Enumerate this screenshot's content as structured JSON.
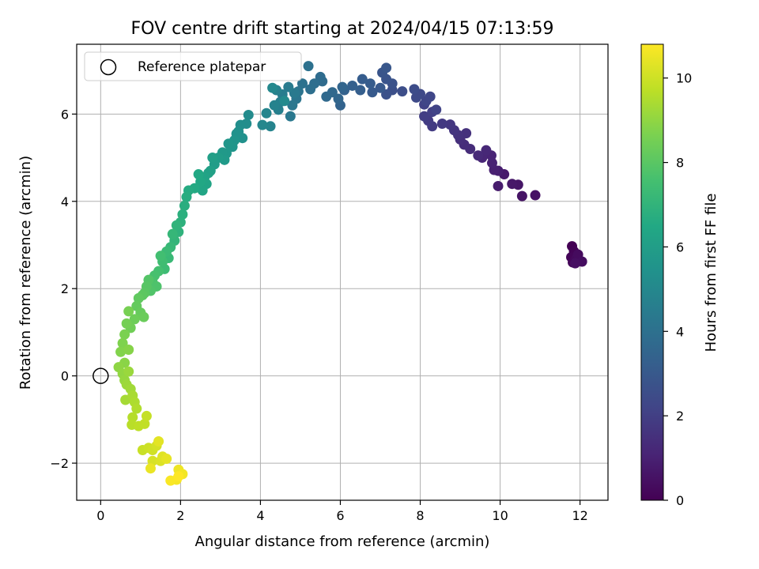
{
  "chart_data": {
    "type": "scatter",
    "title": "FOV centre drift starting at 2024/04/15 07:13:59",
    "xlabel": "Angular distance from reference (arcmin)",
    "ylabel": "Rotation from reference (arcmin)",
    "colorbar_label": "Hours from first FF file",
    "xlim": [
      -0.6,
      12.7
    ],
    "ylim": [
      -2.85,
      7.6
    ],
    "clim": [
      0,
      10.8
    ],
    "colormap": "viridis",
    "grid": true,
    "legend_position": "upper-left",
    "x_ticks": [
      0,
      2,
      4,
      6,
      8,
      10,
      12
    ],
    "y_ticks": [
      -2,
      0,
      2,
      4,
      6
    ],
    "colorbar_ticks": [
      0,
      2,
      4,
      6,
      8,
      10
    ],
    "x_tick_labels": [
      "0",
      "2",
      "4",
      "6",
      "8",
      "10",
      "12"
    ],
    "y_tick_labels": [
      "−2",
      "0",
      "2",
      "4",
      "6"
    ],
    "colorbar_tick_labels": [
      "0",
      "2",
      "4",
      "6",
      "8",
      "10"
    ],
    "reference": {
      "label": "Reference platepar",
      "x": 0.0,
      "y": 0.0
    },
    "series": [
      {
        "points": [
          [
            11.8,
            2.97
          ],
          [
            11.85,
            2.85
          ],
          [
            11.78,
            2.72
          ],
          [
            11.82,
            2.6
          ],
          [
            11.9,
            2.68
          ],
          [
            11.95,
            2.78
          ],
          [
            12.05,
            2.62
          ],
          [
            11.88,
            2.58
          ],
          [
            10.88,
            4.14
          ],
          [
            10.55,
            4.12
          ],
          [
            10.45,
            4.38
          ],
          [
            10.3,
            4.4
          ],
          [
            10.1,
            4.62
          ],
          [
            9.95,
            4.35
          ],
          [
            9.95,
            4.7
          ],
          [
            9.85,
            4.72
          ],
          [
            9.8,
            4.88
          ],
          [
            9.78,
            5.05
          ],
          [
            9.55,
            5.0
          ],
          [
            9.65,
            5.17
          ],
          [
            9.45,
            5.05
          ],
          [
            9.25,
            5.2
          ],
          [
            9.1,
            5.3
          ],
          [
            9.0,
            5.42
          ],
          [
            9.15,
            5.56
          ],
          [
            8.95,
            5.52
          ],
          [
            8.85,
            5.63
          ],
          [
            8.75,
            5.76
          ],
          [
            8.55,
            5.78
          ],
          [
            8.3,
            5.72
          ],
          [
            8.2,
            5.85
          ],
          [
            8.1,
            5.95
          ],
          [
            8.3,
            6.05
          ],
          [
            8.1,
            6.22
          ],
          [
            8.4,
            6.1
          ],
          [
            8.15,
            6.3
          ],
          [
            8.25,
            6.4
          ],
          [
            8.0,
            6.46
          ],
          [
            7.9,
            6.38
          ],
          [
            7.85,
            6.57
          ],
          [
            7.55,
            6.52
          ],
          [
            7.3,
            6.55
          ],
          [
            7.15,
            6.45
          ],
          [
            7.3,
            6.7
          ],
          [
            7.15,
            6.8
          ],
          [
            7.05,
            6.95
          ],
          [
            7.15,
            7.06
          ],
          [
            7.0,
            6.6
          ],
          [
            6.8,
            6.5
          ],
          [
            6.75,
            6.7
          ],
          [
            6.55,
            6.8
          ],
          [
            6.5,
            6.55
          ],
          [
            6.3,
            6.65
          ],
          [
            6.1,
            6.55
          ],
          [
            6.0,
            6.2
          ],
          [
            6.05,
            6.62
          ],
          [
            5.95,
            6.35
          ],
          [
            5.8,
            6.5
          ],
          [
            5.65,
            6.4
          ],
          [
            5.55,
            6.75
          ],
          [
            5.5,
            6.85
          ],
          [
            5.35,
            6.7
          ],
          [
            5.25,
            6.57
          ],
          [
            5.2,
            7.1
          ],
          [
            5.05,
            6.7
          ],
          [
            4.95,
            6.52
          ],
          [
            4.9,
            6.35
          ],
          [
            4.8,
            6.2
          ],
          [
            4.75,
            5.95
          ],
          [
            4.85,
            6.48
          ],
          [
            4.7,
            6.62
          ],
          [
            4.55,
            6.45
          ],
          [
            4.5,
            6.28
          ],
          [
            4.45,
            6.1
          ],
          [
            4.4,
            6.55
          ],
          [
            4.35,
            6.2
          ],
          [
            4.25,
            5.72
          ],
          [
            4.15,
            6.02
          ],
          [
            4.05,
            5.75
          ],
          [
            4.3,
            6.6
          ],
          [
            4.6,
            6.3
          ],
          [
            3.7,
            5.98
          ],
          [
            3.65,
            5.78
          ],
          [
            3.5,
            5.75
          ],
          [
            3.45,
            5.6
          ],
          [
            3.55,
            5.45
          ],
          [
            3.4,
            5.55
          ],
          [
            3.35,
            5.4
          ],
          [
            3.3,
            5.25
          ],
          [
            3.2,
            5.32
          ],
          [
            3.15,
            5.1
          ],
          [
            3.05,
            5.12
          ],
          [
            3.1,
            4.95
          ],
          [
            2.95,
            5.0
          ],
          [
            2.85,
            4.85
          ],
          [
            2.8,
            5.0
          ],
          [
            2.75,
            4.7
          ],
          [
            2.7,
            4.65
          ],
          [
            2.6,
            4.55
          ],
          [
            2.65,
            4.4
          ],
          [
            2.55,
            4.25
          ],
          [
            2.5,
            4.45
          ],
          [
            2.45,
            4.62
          ],
          [
            2.35,
            4.3
          ],
          [
            2.2,
            4.25
          ],
          [
            2.15,
            4.1
          ],
          [
            2.1,
            3.9
          ],
          [
            2.05,
            3.7
          ],
          [
            2.0,
            3.52
          ],
          [
            1.95,
            3.3
          ],
          [
            1.9,
            3.45
          ],
          [
            1.85,
            3.1
          ],
          [
            1.8,
            3.25
          ],
          [
            1.75,
            2.95
          ],
          [
            1.7,
            2.7
          ],
          [
            1.65,
            2.85
          ],
          [
            1.6,
            2.45
          ],
          [
            1.55,
            2.62
          ],
          [
            1.5,
            2.75
          ],
          [
            1.45,
            2.4
          ],
          [
            1.35,
            2.3
          ],
          [
            1.3,
            2.15
          ],
          [
            1.4,
            2.05
          ],
          [
            1.25,
            1.95
          ],
          [
            1.2,
            2.2
          ],
          [
            1.15,
            2.05
          ],
          [
            1.1,
            1.9
          ],
          [
            1.05,
            1.85
          ],
          [
            0.95,
            1.78
          ],
          [
            0.9,
            1.6
          ],
          [
            1.0,
            1.45
          ],
          [
            1.08,
            1.35
          ],
          [
            0.85,
            1.3
          ],
          [
            0.75,
            1.1
          ],
          [
            0.65,
            1.2
          ],
          [
            0.7,
            1.48
          ],
          [
            0.6,
            0.95
          ],
          [
            0.55,
            0.75
          ],
          [
            0.5,
            0.55
          ],
          [
            0.7,
            0.6
          ],
          [
            0.6,
            0.3
          ],
          [
            0.45,
            0.2
          ],
          [
            0.55,
            0.05
          ],
          [
            0.6,
            -0.1
          ],
          [
            0.7,
            0.1
          ],
          [
            0.65,
            -0.2
          ],
          [
            0.75,
            -0.3
          ],
          [
            0.62,
            -0.55
          ],
          [
            0.8,
            -0.45
          ],
          [
            0.85,
            -0.6
          ],
          [
            0.9,
            -0.75
          ],
          [
            0.8,
            -0.95
          ],
          [
            0.78,
            -1.12
          ],
          [
            0.95,
            -1.15
          ],
          [
            1.1,
            -1.1
          ],
          [
            1.15,
            -0.92
          ],
          [
            1.05,
            -1.7
          ],
          [
            1.2,
            -1.65
          ],
          [
            1.3,
            -1.7
          ],
          [
            1.4,
            -1.6
          ],
          [
            1.3,
            -1.95
          ],
          [
            1.5,
            -1.95
          ],
          [
            1.55,
            -1.85
          ],
          [
            1.45,
            -1.5
          ],
          [
            1.65,
            -1.9
          ],
          [
            1.25,
            -2.12
          ],
          [
            1.95,
            -2.15
          ],
          [
            2.05,
            -2.25
          ],
          [
            1.9,
            -2.38
          ],
          [
            1.75,
            -2.4
          ],
          [
            1.95,
            -2.3
          ]
        ]
      }
    ]
  }
}
